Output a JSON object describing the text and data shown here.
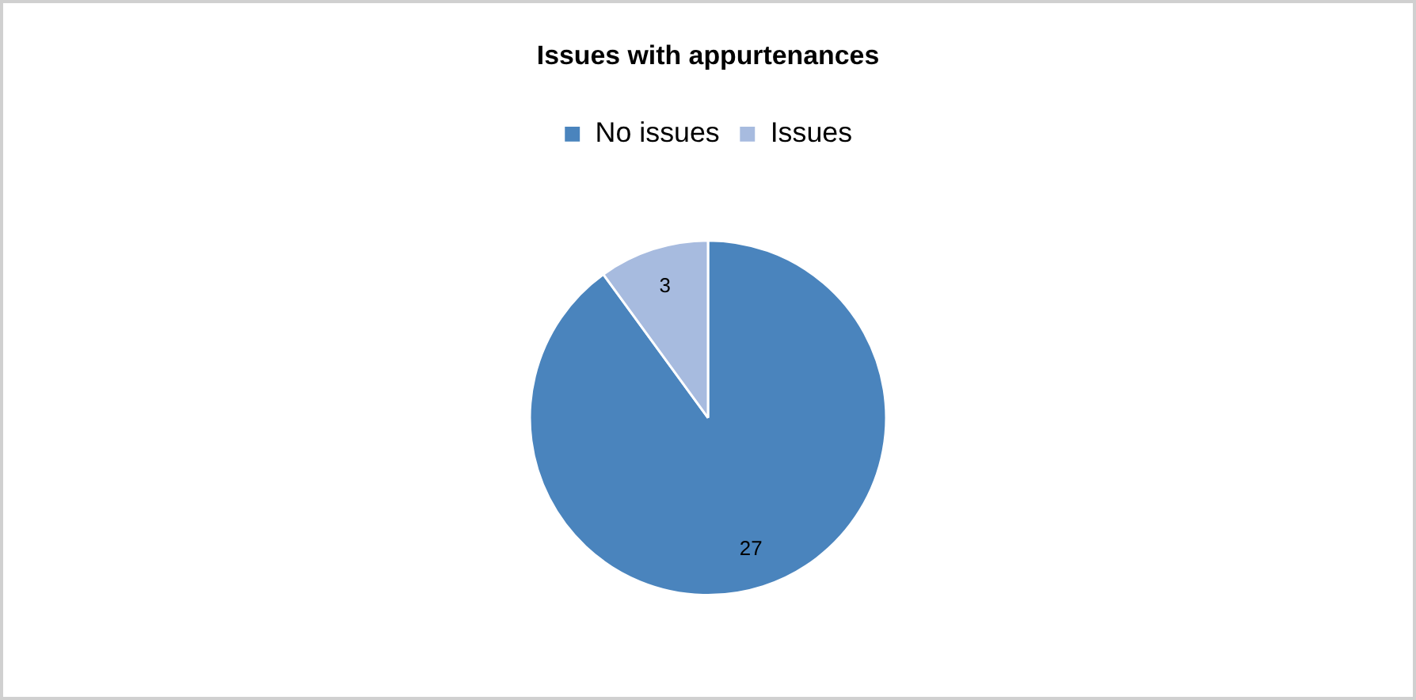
{
  "chart_data": {
    "type": "pie",
    "title": "Issues with appurtenances",
    "categories": [
      "No issues",
      "Issues"
    ],
    "values": [
      27,
      3
    ],
    "colors": [
      "#4a84bd",
      "#a7bbdf"
    ],
    "legend": "top",
    "data_labels": true
  }
}
